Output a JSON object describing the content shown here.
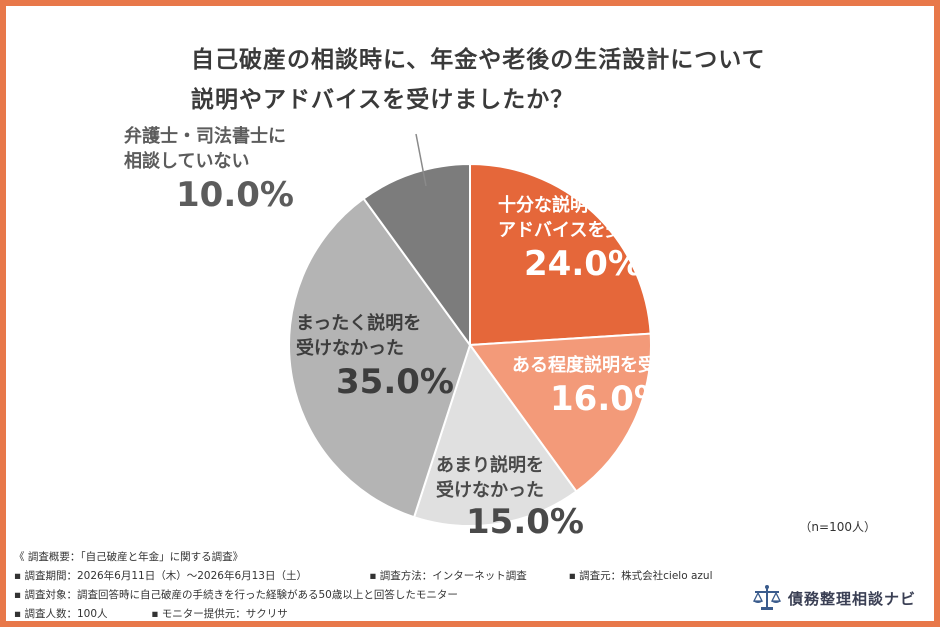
{
  "chart_data": {
    "type": "pie",
    "title_lines": [
      "自己破産の相談時に、年金や老後の生活設計について",
      "説明やアドバイスを受けましたか？"
    ],
    "slices": [
      {
        "label_lines": [
          "十分な説明や",
          "アドバイスを受けた"
        ],
        "value": 24.0,
        "value_label": "24.0%",
        "color": "#e5673a"
      },
      {
        "label_lines": [
          "ある程度説明を受けた"
        ],
        "value": 16.0,
        "value_label": "16.0%",
        "color": "#f39a79"
      },
      {
        "label_lines": [
          "あまり説明を",
          "受けなかった"
        ],
        "value": 15.0,
        "value_label": "15.0%",
        "color": "#e0e0e0"
      },
      {
        "label_lines": [
          "まったく説明を",
          "受けなかった"
        ],
        "value": 35.0,
        "value_label": "35.0%",
        "color": "#b4b4b4"
      },
      {
        "label_lines": [
          "弁護士・司法書士に",
          "相談していない"
        ],
        "value": 10.0,
        "value_label": "10.0%",
        "color": "#7c7c7c"
      }
    ],
    "sample_note": "（n=100人）"
  },
  "footer": {
    "overview": "《 調査概要：「自己破産と年金」に関する調査》",
    "period": "▪ 調査期間：2026年6月11日（木）～2026年6月13日（土）",
    "method": "▪ 調査方法：インターネット調査",
    "source": "▪ 調査元：株式会社cielo azul",
    "target": "▪ 調査対象：調査回答時に自己破産の手続きを行った経験がある50歳以上と回答したモニター",
    "count": "▪ 調査人数：100人",
    "provider": "▪ モニター提供元：サクリサ"
  },
  "logo": {
    "text": "債務整理相談ナビ",
    "icon": "scales-of-justice-icon"
  }
}
